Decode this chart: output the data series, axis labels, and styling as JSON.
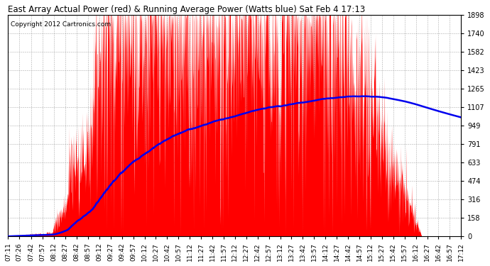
{
  "title": "East Array Actual Power (red) & Running Average Power (Watts blue) Sat Feb 4 17:13",
  "copyright": "Copyright 2012 Cartronics.com",
  "yticks": [
    0.0,
    158.2,
    316.3,
    474.5,
    632.6,
    790.8,
    949.0,
    1107.1,
    1265.3,
    1423.4,
    1581.6,
    1739.8,
    1897.9
  ],
  "ymax": 1897.9,
  "ymin": 0.0,
  "bar_color": "#FF0000",
  "avg_color": "#0000EE",
  "bg_color": "#FFFFFF",
  "grid_color": "#999999",
  "x_tick_labels": [
    "07:11",
    "07:26",
    "07:42",
    "07:57",
    "08:12",
    "08:27",
    "08:42",
    "08:57",
    "09:12",
    "09:27",
    "09:42",
    "09:57",
    "10:12",
    "10:27",
    "10:42",
    "10:57",
    "11:12",
    "11:27",
    "11:42",
    "11:57",
    "12:12",
    "12:27",
    "12:42",
    "12:57",
    "13:12",
    "13:27",
    "13:42",
    "13:57",
    "14:12",
    "14:27",
    "14:42",
    "14:57",
    "15:12",
    "15:27",
    "15:42",
    "15:57",
    "16:12",
    "16:27",
    "16:42",
    "16:57",
    "17:12"
  ],
  "figsize": [
    6.9,
    3.75
  ],
  "dpi": 100
}
